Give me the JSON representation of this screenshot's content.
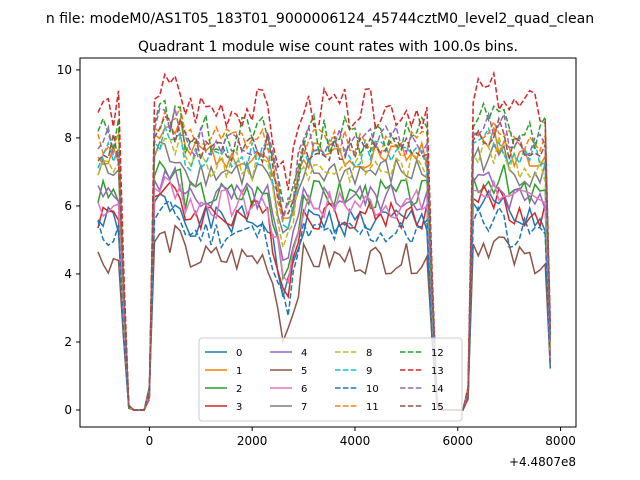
{
  "chart_data": {
    "type": "line",
    "suptitle": "n file: modeM0/AS1T05_183T01_9000006124_45744cztM0_level2_quad_clean",
    "title": "Quadrant 1 module wise count rates with 100.0s bins.",
    "xlabel": "",
    "ylabel": "",
    "x_offset_label": "+4.4807e8",
    "xlim": [
      -1350,
      8300
    ],
    "ylim": [
      -0.5,
      10.35
    ],
    "x_ticks": [
      0,
      2000,
      4000,
      6000,
      8000
    ],
    "x_tick_labels": [
      "0",
      "2000",
      "4000",
      "6000",
      "8000"
    ],
    "y_ticks": [
      0,
      2,
      4,
      6,
      8,
      10
    ],
    "y_tick_labels": [
      "0",
      "2",
      "4",
      "6",
      "8",
      "10"
    ],
    "grid": false,
    "legend_placement": "lower-center",
    "legend_columns": 4,
    "series": [
      {
        "name": "0",
        "color": "#1f77b4",
        "dash": "solid",
        "base": 5.55,
        "seed": 1
      },
      {
        "name": "1",
        "color": "#ff7f0e",
        "dash": "solid",
        "base": 7.55,
        "seed": 2
      },
      {
        "name": "2",
        "color": "#2ca02c",
        "dash": "solid",
        "base": 6.35,
        "seed": 3
      },
      {
        "name": "3",
        "color": "#d62728",
        "dash": "solid",
        "base": 5.75,
        "seed": 4
      },
      {
        "name": "4",
        "color": "#9467bd",
        "dash": "solid",
        "base": 6.25,
        "seed": 5
      },
      {
        "name": "5",
        "color": "#8c564b",
        "dash": "solid",
        "base": 4.45,
        "seed": 6
      },
      {
        "name": "6",
        "color": "#e377c2",
        "dash": "solid",
        "base": 6.05,
        "seed": 7
      },
      {
        "name": "7",
        "color": "#7f7f7f",
        "dash": "solid",
        "base": 7.0,
        "seed": 8
      },
      {
        "name": "8",
        "color": "#bcbd22",
        "dash": "dashed",
        "base": 7.15,
        "seed": 9
      },
      {
        "name": "9",
        "color": "#17becf",
        "dash": "dashed",
        "base": 7.5,
        "seed": 10
      },
      {
        "name": "10",
        "color": "#1f77b4",
        "dash": "dashed",
        "base": 5.2,
        "seed": 11
      },
      {
        "name": "11",
        "color": "#ff7f0e",
        "dash": "dashed",
        "base": 7.9,
        "seed": 12
      },
      {
        "name": "12",
        "color": "#2ca02c",
        "dash": "dashed",
        "base": 8.1,
        "seed": 13
      },
      {
        "name": "13",
        "color": "#d62728",
        "dash": "dashed",
        "base": 8.85,
        "seed": 14
      },
      {
        "name": "14",
        "color": "#9467bd",
        "dash": "dashed",
        "base": 7.9,
        "seed": 15
      },
      {
        "name": "15",
        "color": "#8c564b",
        "dash": "dashed",
        "base": 7.7,
        "seed": 16
      }
    ],
    "segments": [
      {
        "x_start": -1000,
        "x_end": -400,
        "step": 100
      },
      {
        "x_start": -400,
        "x_end": 0,
        "step": 100,
        "flat_zero": true
      },
      {
        "x_start": 0,
        "x_end": 5600,
        "step": 100
      },
      {
        "x_start": 5600,
        "x_end": 6200,
        "step": 100,
        "flat_zero": true
      },
      {
        "x_start": 6200,
        "x_end": 7800,
        "step": 100
      }
    ],
    "dip_center": 2650,
    "dip_depth": 2.4
  }
}
